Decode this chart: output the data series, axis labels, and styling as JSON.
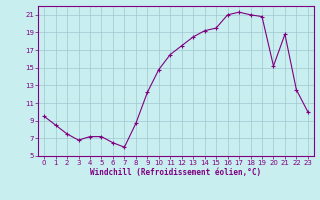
{
  "x": [
    0,
    1,
    2,
    3,
    4,
    5,
    6,
    7,
    8,
    9,
    10,
    11,
    12,
    13,
    14,
    15,
    16,
    17,
    18,
    19,
    20,
    21,
    22,
    23
  ],
  "y": [
    9.5,
    8.5,
    7.5,
    6.8,
    7.2,
    7.2,
    6.5,
    6.0,
    8.7,
    12.2,
    14.8,
    16.5,
    17.5,
    18.5,
    19.2,
    19.5,
    21.0,
    21.3,
    21.0,
    20.8,
    15.2,
    18.8,
    12.5,
    10.0
  ],
  "color": "#800080",
  "bg_color": "#c8eef0",
  "grid_color": "#a0c8d0",
  "xlabel": "Windchill (Refroidissement éolien,°C)",
  "ylim": [
    5,
    22
  ],
  "xlim": [
    -0.5,
    23.5
  ],
  "yticks": [
    5,
    7,
    9,
    11,
    13,
    15,
    17,
    19,
    21
  ],
  "xticks": [
    0,
    1,
    2,
    3,
    4,
    5,
    6,
    7,
    8,
    9,
    10,
    11,
    12,
    13,
    14,
    15,
    16,
    17,
    18,
    19,
    20,
    21,
    22,
    23
  ],
  "figsize": [
    3.2,
    2.0
  ],
  "dpi": 100
}
